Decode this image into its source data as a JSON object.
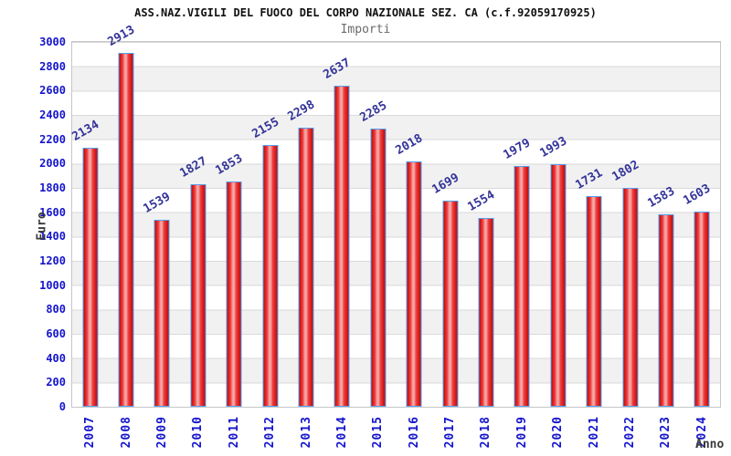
{
  "header": {
    "title": "ASS.NAZ.VIGILI DEL FUOCO DEL CORPO NAZIONALE SEZ. CA (c.f.92059170925)",
    "subtitle": "Importi"
  },
  "axes": {
    "y_title": "Euro",
    "x_title": "Anno"
  },
  "chart_data": {
    "type": "bar",
    "title": "ASS.NAZ.VIGILI DEL FUOCO DEL CORPO NAZIONALE SEZ. CA (c.f.92059170925)",
    "subtitle": "Importi",
    "xlabel": "Anno",
    "ylabel": "Euro",
    "categories": [
      "2007",
      "2008",
      "2009",
      "2010",
      "2011",
      "2012",
      "2013",
      "2014",
      "2015",
      "2016",
      "2017",
      "2018",
      "2019",
      "2020",
      "2021",
      "2022",
      "2023",
      "2024"
    ],
    "values": [
      2134,
      2913,
      1539,
      1827,
      1853,
      2155,
      2298,
      2637,
      2285,
      2018,
      1699,
      1554,
      1979,
      1993,
      1731,
      1802,
      1583,
      1603
    ],
    "ylim": [
      0,
      3000
    ],
    "ytick_step": 200,
    "grid": true,
    "background_bands": "alternating white/gray every 200",
    "legend_position": "none",
    "colors": {
      "bar_fill": "#d91f1f",
      "bar_highlight": "#f7adad",
      "bar_border": "#55a0f0",
      "tick_labels": "#1414cc",
      "value_labels": "#333399",
      "band_gray": "#f1f1f1",
      "grid_line": "#d9d9d9",
      "title": "#111111",
      "subtitle": "#6b6b6b",
      "axis_titles": "#3a3a3a"
    }
  }
}
